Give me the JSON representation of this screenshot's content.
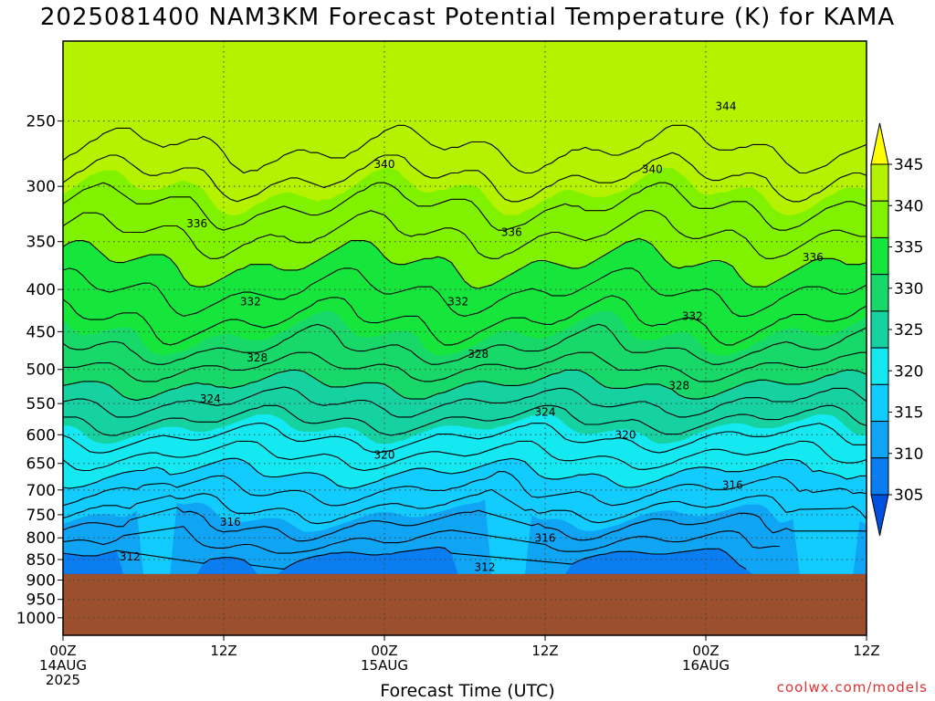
{
  "chart_data": {
    "type": "contour-time-height",
    "title": "2025081400 NAM3KM Forecast Potential Temperature (K) for KAMA",
    "xlabel": "Forecast Time (UTC)",
    "ylabel": "",
    "y_ticks": [
      250,
      300,
      350,
      400,
      450,
      500,
      550,
      600,
      650,
      700,
      750,
      800,
      850,
      900,
      950,
      1000
    ],
    "y_range": [
      200,
      1050
    ],
    "y_scale": "log-pressure",
    "x_range_hours": [
      0,
      60
    ],
    "x_ticks": [
      {
        "hour": 0,
        "lines": [
          "00Z",
          "14AUG",
          "2025"
        ]
      },
      {
        "hour": 12,
        "lines": [
          "12Z"
        ]
      },
      {
        "hour": 24,
        "lines": [
          "00Z",
          "15AUG"
        ]
      },
      {
        "hour": 36,
        "lines": [
          "12Z"
        ]
      },
      {
        "hour": 48,
        "lines": [
          "00Z",
          "16AUG"
        ]
      },
      {
        "hour": 60,
        "lines": [
          "12Z"
        ]
      }
    ],
    "grid": true,
    "ground_pressure": 885,
    "colorbar": {
      "levels": [
        305,
        310,
        315,
        320,
        325,
        330,
        335,
        340,
        345
      ],
      "labels": [
        "305",
        "310",
        "315",
        "320",
        "325",
        "330",
        "335",
        "340",
        "345"
      ],
      "colors": [
        "#0050e0",
        "#0a7df0",
        "#10a4f4",
        "#12ccff",
        "#14e8f0",
        "#16d2a0",
        "#19d86a",
        "#16e63c",
        "#80f200",
        "#b4f200",
        "#ffff00"
      ],
      "position": "right"
    },
    "contour_labels": [
      {
        "value": "344",
        "hour": 49.5,
        "p": 240
      },
      {
        "value": "340",
        "hour": 24,
        "p": 282
      },
      {
        "value": "340",
        "hour": 44,
        "p": 286
      },
      {
        "value": "336",
        "hour": 10,
        "p": 333
      },
      {
        "value": "336",
        "hour": 33.5,
        "p": 341
      },
      {
        "value": "336",
        "hour": 56,
        "p": 366
      },
      {
        "value": "332",
        "hour": 14,
        "p": 414
      },
      {
        "value": "332",
        "hour": 29.5,
        "p": 414
      },
      {
        "value": "332",
        "hour": 47,
        "p": 431
      },
      {
        "value": "328",
        "hour": 14.5,
        "p": 484
      },
      {
        "value": "328",
        "hour": 31,
        "p": 479
      },
      {
        "value": "328",
        "hour": 46,
        "p": 523
      },
      {
        "value": "324",
        "hour": 11,
        "p": 543
      },
      {
        "value": "324",
        "hour": 36,
        "p": 563
      },
      {
        "value": "320",
        "hour": 24,
        "p": 635
      },
      {
        "value": "320",
        "hour": 42,
        "p": 600
      },
      {
        "value": "316",
        "hour": 12.5,
        "p": 766
      },
      {
        "value": "316",
        "hour": 36,
        "p": 801
      },
      {
        "value": "316",
        "hour": 50,
        "p": 691
      },
      {
        "value": "312",
        "hour": 5,
        "p": 843
      },
      {
        "value": "312",
        "hour": 31.5,
        "p": 868
      }
    ]
  },
  "watermark": "coolwx.com/models",
  "colors": {
    "ground": "#9c4f2c",
    "grid": "#444444",
    "contour": "#000000"
  }
}
